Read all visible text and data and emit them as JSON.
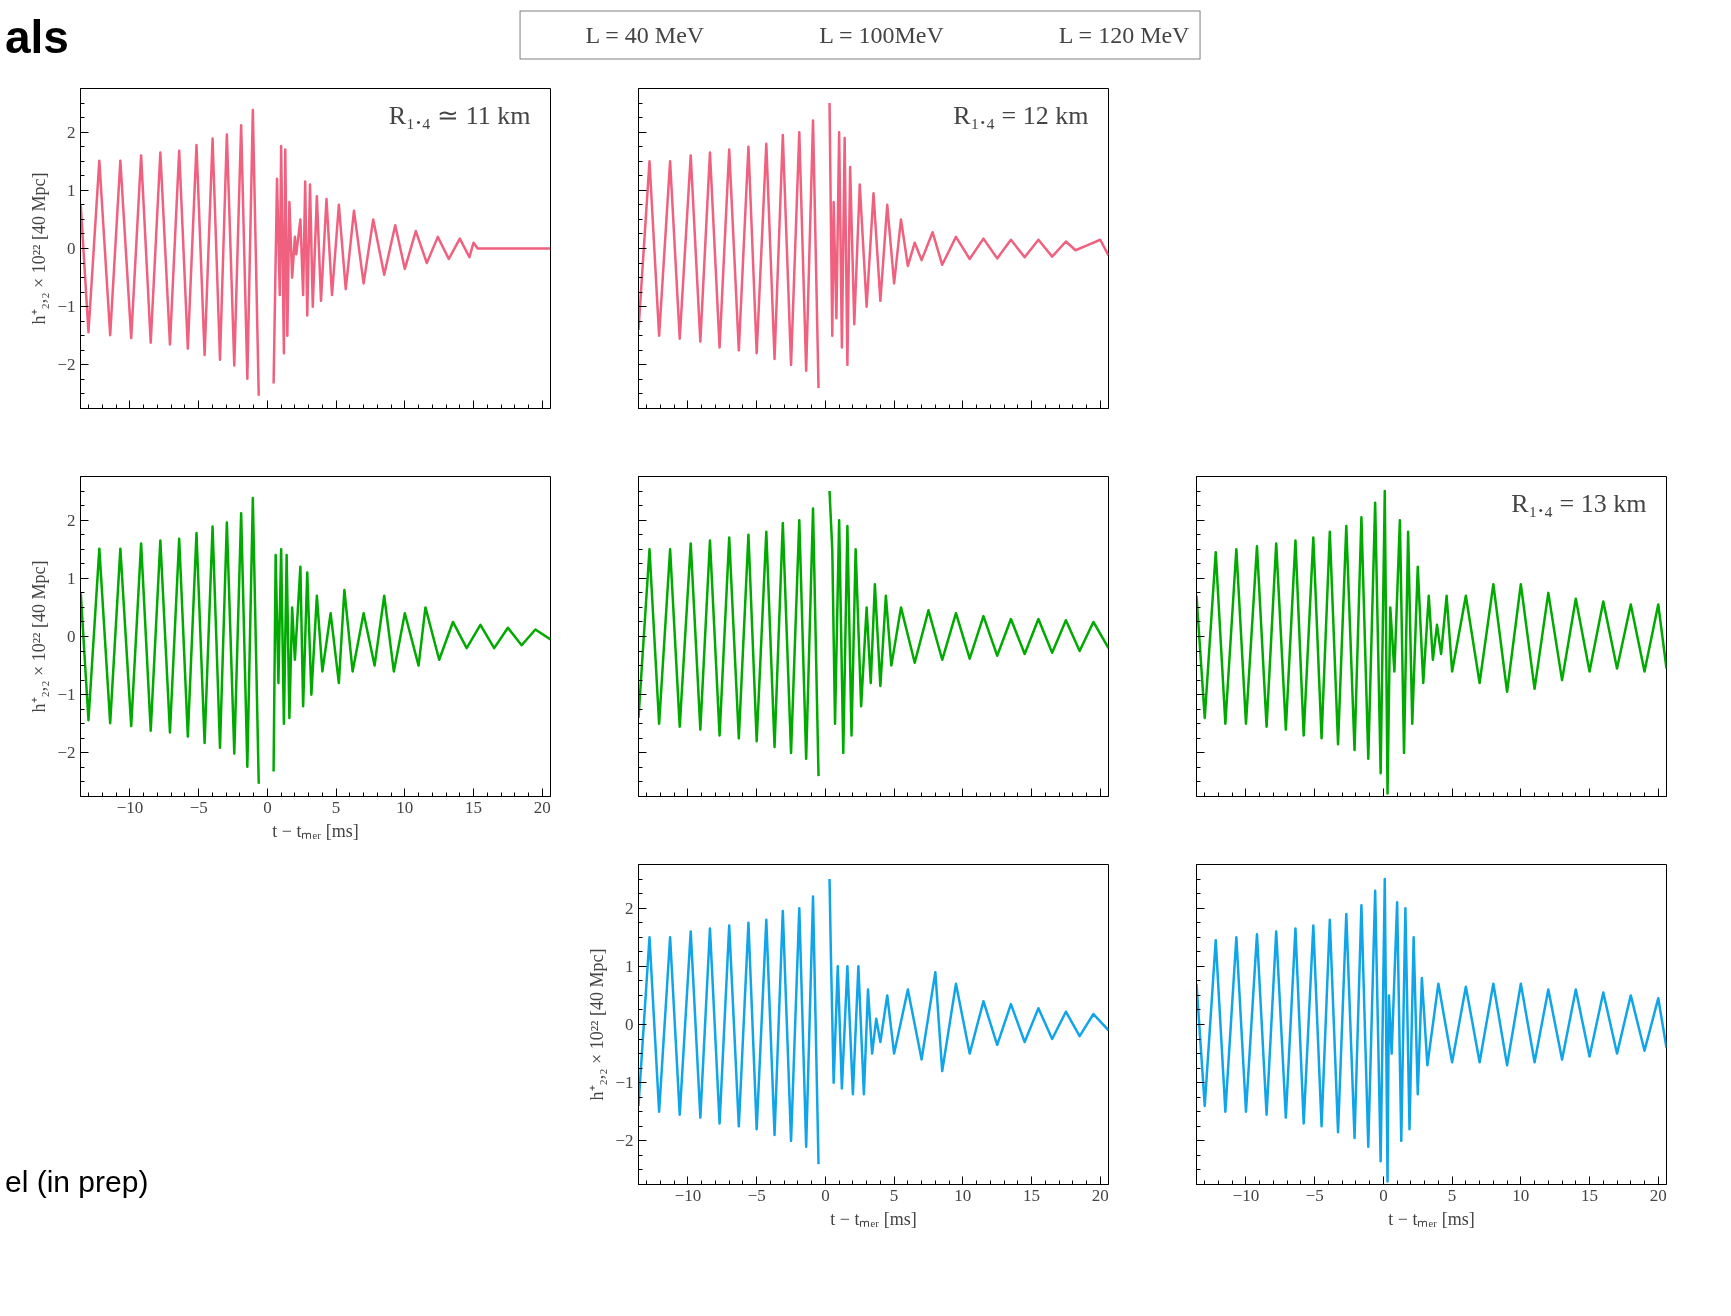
{
  "chart_data": [
    {
      "type": "line",
      "title": "R₁.₄ ≃ 11 km",
      "annotations": [
        "als"
      ],
      "xlim": [
        -13.6,
        20.6
      ],
      "ylim": [
        -2.75,
        2.75
      ],
      "xticks": [
        -10,
        -5,
        0,
        5,
        10,
        15,
        20
      ],
      "yticks": [
        -2,
        -1,
        0,
        1,
        2
      ],
      "ylabel": "h⁺₂,₂ × 10²² [40 Mpc]",
      "tick_labels": "y",
      "legend": "top",
      "series": [
        {
          "name": "L = 40 MeV",
          "color": "#f0607f",
          "x": [
            -13.58,
            -13.02,
            -12.23,
            -11.44,
            -10.7,
            -9.91,
            -9.19,
            -8.49,
            -7.79,
            -7.09,
            -6.42,
            -5.79,
            -5.16,
            -4.57,
            -3.99,
            -3.45,
            -2.95,
            -2.41,
            -1.91,
            -1.46,
            -1.06,
            -0.63,
            -0.29,
            0,
            0.16,
            0.45,
            0.7,
            0.9,
            1.0,
            1.2,
            1.3,
            1.45,
            1.6,
            1.8,
            2.0,
            2.1,
            2.4,
            2.6,
            2.75,
            2.9,
            3.1,
            3.3,
            3.6,
            3.9,
            4.3,
            4.7,
            5.2,
            5.7,
            6.3,
            7,
            7.7,
            8.5,
            9.3,
            10,
            10.8,
            11.6,
            12.4,
            13.2,
            14,
            14.7,
            15,
            15.3,
            20.6
          ],
          "values": [
            0.74,
            -1.44,
            1.51,
            -1.49,
            1.51,
            -1.54,
            1.6,
            -1.62,
            1.65,
            -1.65,
            1.68,
            -1.72,
            1.78,
            -1.83,
            1.89,
            -1.91,
            1.96,
            -2.01,
            2.12,
            -2.24,
            2.38,
            -2.53,
            null,
            null,
            null,
            -2.32,
            1.2,
            -0.8,
            1.76,
            -1.8,
            1.7,
            -1.5,
            0.8,
            -0.5,
            0.2,
            -0.1,
            0.5,
            -0.8,
            1.15,
            -1.15,
            1.1,
            -1.0,
            0.9,
            -0.9,
            0.85,
            -0.8,
            0.75,
            -0.7,
            0.65,
            -0.6,
            0.5,
            -0.45,
            0.4,
            -0.35,
            0.3,
            -0.25,
            0.2,
            -0.18,
            0.17,
            -0.15,
            0.1,
            0,
            0
          ]
        }
      ]
    },
    {
      "type": "line",
      "title": "R₁.₄ = 12 km",
      "xlim": [
        -13.6,
        20.6
      ],
      "ylim": [
        -2.75,
        2.75
      ],
      "xticks": [
        -10,
        -5,
        0,
        5,
        10,
        15,
        20
      ],
      "yticks": [
        -2,
        -1,
        0,
        1,
        2
      ],
      "tick_labels": false,
      "series": [
        {
          "color": "#f0607f",
          "x": [
            -13.6,
            -12.8,
            -12.1,
            -11.3,
            -10.6,
            -9.8,
            -9.1,
            -8.4,
            -7.7,
            -7.0,
            -6.3,
            -5.6,
            -5.0,
            -4.3,
            -3.7,
            -3.1,
            -2.5,
            -1.9,
            -1.4,
            -0.9,
            -0.5,
            -0.2,
            0.0,
            0.3,
            0.5,
            0.6,
            0.8,
            1.0,
            1.2,
            1.4,
            1.6,
            1.8,
            2.1,
            2.5,
            3.0,
            3.5,
            4.0,
            4.5,
            5.0,
            5.5,
            6.0,
            6.5,
            7.0,
            7.8,
            8.5,
            9.5,
            10.5,
            11.5,
            12.5,
            13.5,
            14.5,
            15.5,
            16.5,
            17.5,
            18.2,
            19,
            20,
            20.6
          ],
          "values": [
            -1.4,
            1.5,
            -1.5,
            1.5,
            -1.55,
            1.6,
            -1.6,
            1.65,
            -1.7,
            1.7,
            -1.75,
            1.75,
            -1.8,
            1.8,
            -1.9,
            1.95,
            -2.0,
            2.0,
            -2.1,
            2.2,
            -2.4,
            null,
            null,
            2.5,
            -1.5,
            0.8,
            -1.2,
            2.0,
            -1.7,
            1.9,
            -2.0,
            1.4,
            -1.3,
            1.1,
            -1.0,
            0.95,
            -0.9,
            0.75,
            -0.6,
            0.5,
            -0.3,
            0.1,
            -0.2,
            0.28,
            -0.28,
            0.2,
            -0.18,
            0.17,
            -0.17,
            0.15,
            -0.15,
            0.15,
            -0.14,
            0.12,
            -0.03,
            0.05,
            0.15,
            -0.12
          ]
        }
      ]
    },
    {
      "type": "line",
      "annotations": [
        "el (in prep)"
      ],
      "xlim": [
        -13.6,
        20.6
      ],
      "ylim": [
        -2.75,
        2.75
      ],
      "xticks": [
        -10,
        -5,
        0,
        5,
        10,
        15,
        20
      ],
      "yticks": [
        -2,
        -1,
        0,
        1,
        2
      ],
      "xlabel": "t − tₘₑᵣ [ms]",
      "ylabel": "h⁺₂,₂ × 10²² [40 Mpc]",
      "legend": "top",
      "series": [
        {
          "name": "L = 100MeV",
          "color": "#00aa00",
          "x": [
            -13.58,
            -13.02,
            -12.23,
            -11.44,
            -10.7,
            -9.91,
            -9.19,
            -8.49,
            -7.79,
            -7.09,
            -6.42,
            -5.79,
            -5.16,
            -4.57,
            -3.99,
            -3.45,
            -2.95,
            -2.41,
            -1.91,
            -1.46,
            -1.06,
            -0.63,
            -0.29,
            0,
            0.16,
            0.45,
            0.6,
            0.8,
            1.0,
            1.2,
            1.4,
            1.6,
            1.8,
            2.0,
            2.4,
            2.6,
            2.9,
            3.2,
            3.6,
            4,
            4.6,
            5.2,
            5.6,
            6.2,
            7,
            7.8,
            8.5,
            9.2,
            10,
            11,
            11.5,
            12.5,
            13.5,
            14.5,
            15.5,
            16.5,
            17.5,
            18.5,
            19.5,
            20.6
          ],
          "values": [
            0.74,
            -1.44,
            1.51,
            -1.49,
            1.51,
            -1.54,
            1.6,
            -1.62,
            1.65,
            -1.65,
            1.68,
            -1.72,
            1.78,
            -1.83,
            1.89,
            -1.91,
            1.96,
            -2.01,
            2.12,
            -2.24,
            2.38,
            -2.53,
            null,
            null,
            null,
            -2.32,
            1.4,
            -0.8,
            1.5,
            -1.5,
            1.4,
            -1.4,
            0.5,
            -0.4,
            1.2,
            -1.2,
            1.1,
            -1.0,
            0.7,
            -0.6,
            0.4,
            -0.8,
            0.8,
            -0.6,
            0.4,
            -0.5,
            0.7,
            -0.6,
            0.4,
            -0.5,
            0.5,
            -0.4,
            0.25,
            -0.2,
            0.2,
            -0.2,
            0.15,
            -0.15,
            0.12,
            -0.05
          ]
        }
      ]
    },
    {
      "type": "line",
      "xlim": [
        -13.6,
        20.6
      ],
      "ylim": [
        -2.75,
        2.75
      ],
      "xticks": [
        -10,
        -5,
        0,
        5,
        10,
        15,
        20
      ],
      "yticks": [
        -2,
        -1,
        0,
        1,
        2
      ],
      "tick_labels": false,
      "series": [
        {
          "color": "#00aa00",
          "x": [
            -13.6,
            -12.8,
            -12.1,
            -11.3,
            -10.6,
            -9.8,
            -9.1,
            -8.4,
            -7.7,
            -7.0,
            -6.3,
            -5.6,
            -5.0,
            -4.3,
            -3.7,
            -3.1,
            -2.5,
            -1.9,
            -1.4,
            -0.9,
            -0.5,
            -0.2,
            0.0,
            0.3,
            0.5,
            0.7,
            1.0,
            1.3,
            1.6,
            1.9,
            2.2,
            2.6,
            3.0,
            3.3,
            3.6,
            4.0,
            4.4,
            4.8,
            5.5,
            6.5,
            7.5,
            8.5,
            9.5,
            10.5,
            11.5,
            12.5,
            13.5,
            14.5,
            15.5,
            16.5,
            17.5,
            18.5,
            19.5,
            20.6
          ],
          "values": [
            -1.4,
            1.5,
            -1.5,
            1.5,
            -1.55,
            1.6,
            -1.6,
            1.65,
            -1.7,
            1.7,
            -1.75,
            1.75,
            -1.8,
            1.8,
            -1.9,
            1.95,
            -2.0,
            2.0,
            -2.1,
            2.2,
            -2.4,
            null,
            null,
            2.5,
            1.5,
            -1.5,
            2.0,
            -2.0,
            1.9,
            -1.7,
            1.5,
            -1.2,
            0.5,
            -0.8,
            0.9,
            -0.85,
            0.7,
            -0.5,
            0.5,
            -0.45,
            0.45,
            -0.4,
            0.4,
            -0.38,
            0.35,
            -0.33,
            0.3,
            -0.3,
            0.3,
            -0.28,
            0.28,
            -0.25,
            0.25,
            -0.2
          ]
        }
      ]
    },
    {
      "type": "line",
      "title": "R₁.₄ = 13 km",
      "xlim": [
        -13.6,
        20.6
      ],
      "ylim": [
        -2.75,
        2.75
      ],
      "xticks": [
        -10,
        -5,
        0,
        5,
        10,
        15,
        20
      ],
      "yticks": [
        -2,
        -1,
        0,
        1,
        2
      ],
      "tick_labels": false,
      "series": [
        {
          "color": "#00aa00",
          "x": [
            -13.6,
            -13.0,
            -12.2,
            -11.5,
            -10.7,
            -10.0,
            -9.2,
            -8.5,
            -7.8,
            -7.1,
            -6.4,
            -5.8,
            -5.1,
            -4.5,
            -3.9,
            -3.3,
            -2.7,
            -2.1,
            -1.6,
            -1.1,
            -0.6,
            -0.2,
            0.1,
            0.3,
            0.5,
            0.8,
            1.2,
            1.5,
            1.8,
            2.1,
            2.5,
            2.9,
            3.3,
            3.6,
            3.9,
            4.2,
            4.6,
            5,
            6,
            7,
            8,
            9,
            10,
            11,
            12,
            13,
            14,
            15,
            16,
            17,
            18,
            19,
            20,
            20.6
          ],
          "values": [
            0.7,
            -1.4,
            1.45,
            -1.5,
            1.5,
            -1.5,
            1.55,
            -1.55,
            1.6,
            -1.6,
            1.65,
            -1.7,
            1.7,
            -1.75,
            1.8,
            -1.85,
            1.9,
            -1.95,
            2.05,
            -2.1,
            2.3,
            -2.35,
            2.5,
            -2.7,
            0.5,
            -0.6,
            2.0,
            -2.0,
            1.8,
            -1.5,
            1.2,
            -0.8,
            0.7,
            -0.4,
            0.2,
            -0.3,
            0.7,
            -0.6,
            0.7,
            -0.8,
            0.9,
            -0.95,
            0.9,
            -0.9,
            0.75,
            -0.75,
            0.65,
            -0.6,
            0.6,
            -0.55,
            0.55,
            -0.6,
            0.55,
            -0.55
          ]
        }
      ]
    },
    {
      "type": "line",
      "xlim": [
        -13.6,
        20.6
      ],
      "ylim": [
        -2.75,
        2.75
      ],
      "xticks": [
        -10,
        -5,
        0,
        5,
        10,
        15,
        20
      ],
      "yticks": [
        -2,
        -1,
        0,
        1,
        2
      ],
      "xlabel": "t − tₘₑᵣ [ms]",
      "ylabel": "h⁺₂,₂ × 10²² [40 Mpc]",
      "legend": "top",
      "series": [
        {
          "name": "L = 120 MeV",
          "color": "#10a5e8",
          "x": [
            -13.6,
            -12.8,
            -12.1,
            -11.3,
            -10.6,
            -9.8,
            -9.1,
            -8.4,
            -7.7,
            -7.0,
            -6.3,
            -5.6,
            -5.0,
            -4.3,
            -3.7,
            -3.1,
            -2.5,
            -1.9,
            -1.4,
            -0.9,
            -0.5,
            -0.2,
            0.0,
            0.3,
            0.4,
            0.6,
            0.9,
            1.2,
            1.6,
            2,
            2.4,
            2.8,
            3.1,
            3.4,
            3.7,
            4,
            4.5,
            5,
            6,
            7,
            8,
            8.5,
            9.5,
            10.5,
            11.5,
            12.5,
            13.5,
            14.5,
            15.5,
            16.5,
            17.5,
            18.5,
            19.5,
            20.6
          ],
          "values": [
            -1.4,
            1.5,
            -1.5,
            1.5,
            -1.55,
            1.6,
            -1.6,
            1.65,
            -1.7,
            1.7,
            -1.75,
            1.75,
            -1.8,
            1.8,
            -1.9,
            1.95,
            -2.0,
            2.0,
            -2.1,
            2.2,
            -2.4,
            null,
            null,
            2.5,
            1.2,
            -1.0,
            1.0,
            -1.1,
            1.0,
            -1.2,
            1.0,
            -1.2,
            0.6,
            -0.5,
            0.1,
            -0.3,
            0.5,
            -0.5,
            0.6,
            -0.6,
            0.9,
            -0.8,
            0.7,
            -0.5,
            0.4,
            -0.35,
            0.35,
            -0.3,
            0.28,
            -0.25,
            0.22,
            -0.2,
            0.18,
            -0.1
          ]
        }
      ]
    },
    {
      "type": "line",
      "xlim": [
        -13.6,
        20.6
      ],
      "ylim": [
        -2.75,
        2.75
      ],
      "xticks": [
        -10,
        -5,
        0,
        5,
        10,
        15,
        20
      ],
      "yticks": [
        -2,
        -1,
        0,
        1,
        2
      ],
      "xlabel": "t − tₘₑᵣ [ms]",
      "tick_labels": "x",
      "series": [
        {
          "color": "#10a5e8",
          "x": [
            -13.6,
            -13.0,
            -12.2,
            -11.5,
            -10.7,
            -10.0,
            -9.2,
            -8.5,
            -7.8,
            -7.1,
            -6.4,
            -5.8,
            -5.1,
            -4.5,
            -3.9,
            -3.3,
            -2.7,
            -2.1,
            -1.6,
            -1.1,
            -0.6,
            -0.2,
            0.1,
            0.3,
            0.4,
            0.6,
            1.0,
            1.3,
            1.6,
            1.9,
            2.2,
            2.5,
            2.8,
            3.2,
            4,
            5,
            6,
            7,
            8,
            9,
            10,
            11,
            12,
            13,
            14,
            15,
            16,
            17,
            18,
            19,
            20,
            20.6
          ],
          "values": [
            0.7,
            -1.4,
            1.45,
            -1.5,
            1.5,
            -1.5,
            1.55,
            -1.55,
            1.6,
            -1.6,
            1.65,
            -1.7,
            1.7,
            -1.75,
            1.8,
            -1.85,
            1.9,
            -1.95,
            2.05,
            -2.1,
            2.3,
            -2.35,
            2.5,
            -2.7,
            0.5,
            -0.5,
            2.1,
            -2.0,
            2.0,
            -1.8,
            1.5,
            -1.2,
            0.8,
            -0.7,
            0.7,
            -0.65,
            0.65,
            -0.65,
            0.7,
            -0.7,
            0.7,
            -0.65,
            0.6,
            -0.6,
            0.6,
            -0.55,
            0.55,
            -0.5,
            0.5,
            -0.45,
            0.45,
            -0.4
          ]
        }
      ]
    }
  ]
}
